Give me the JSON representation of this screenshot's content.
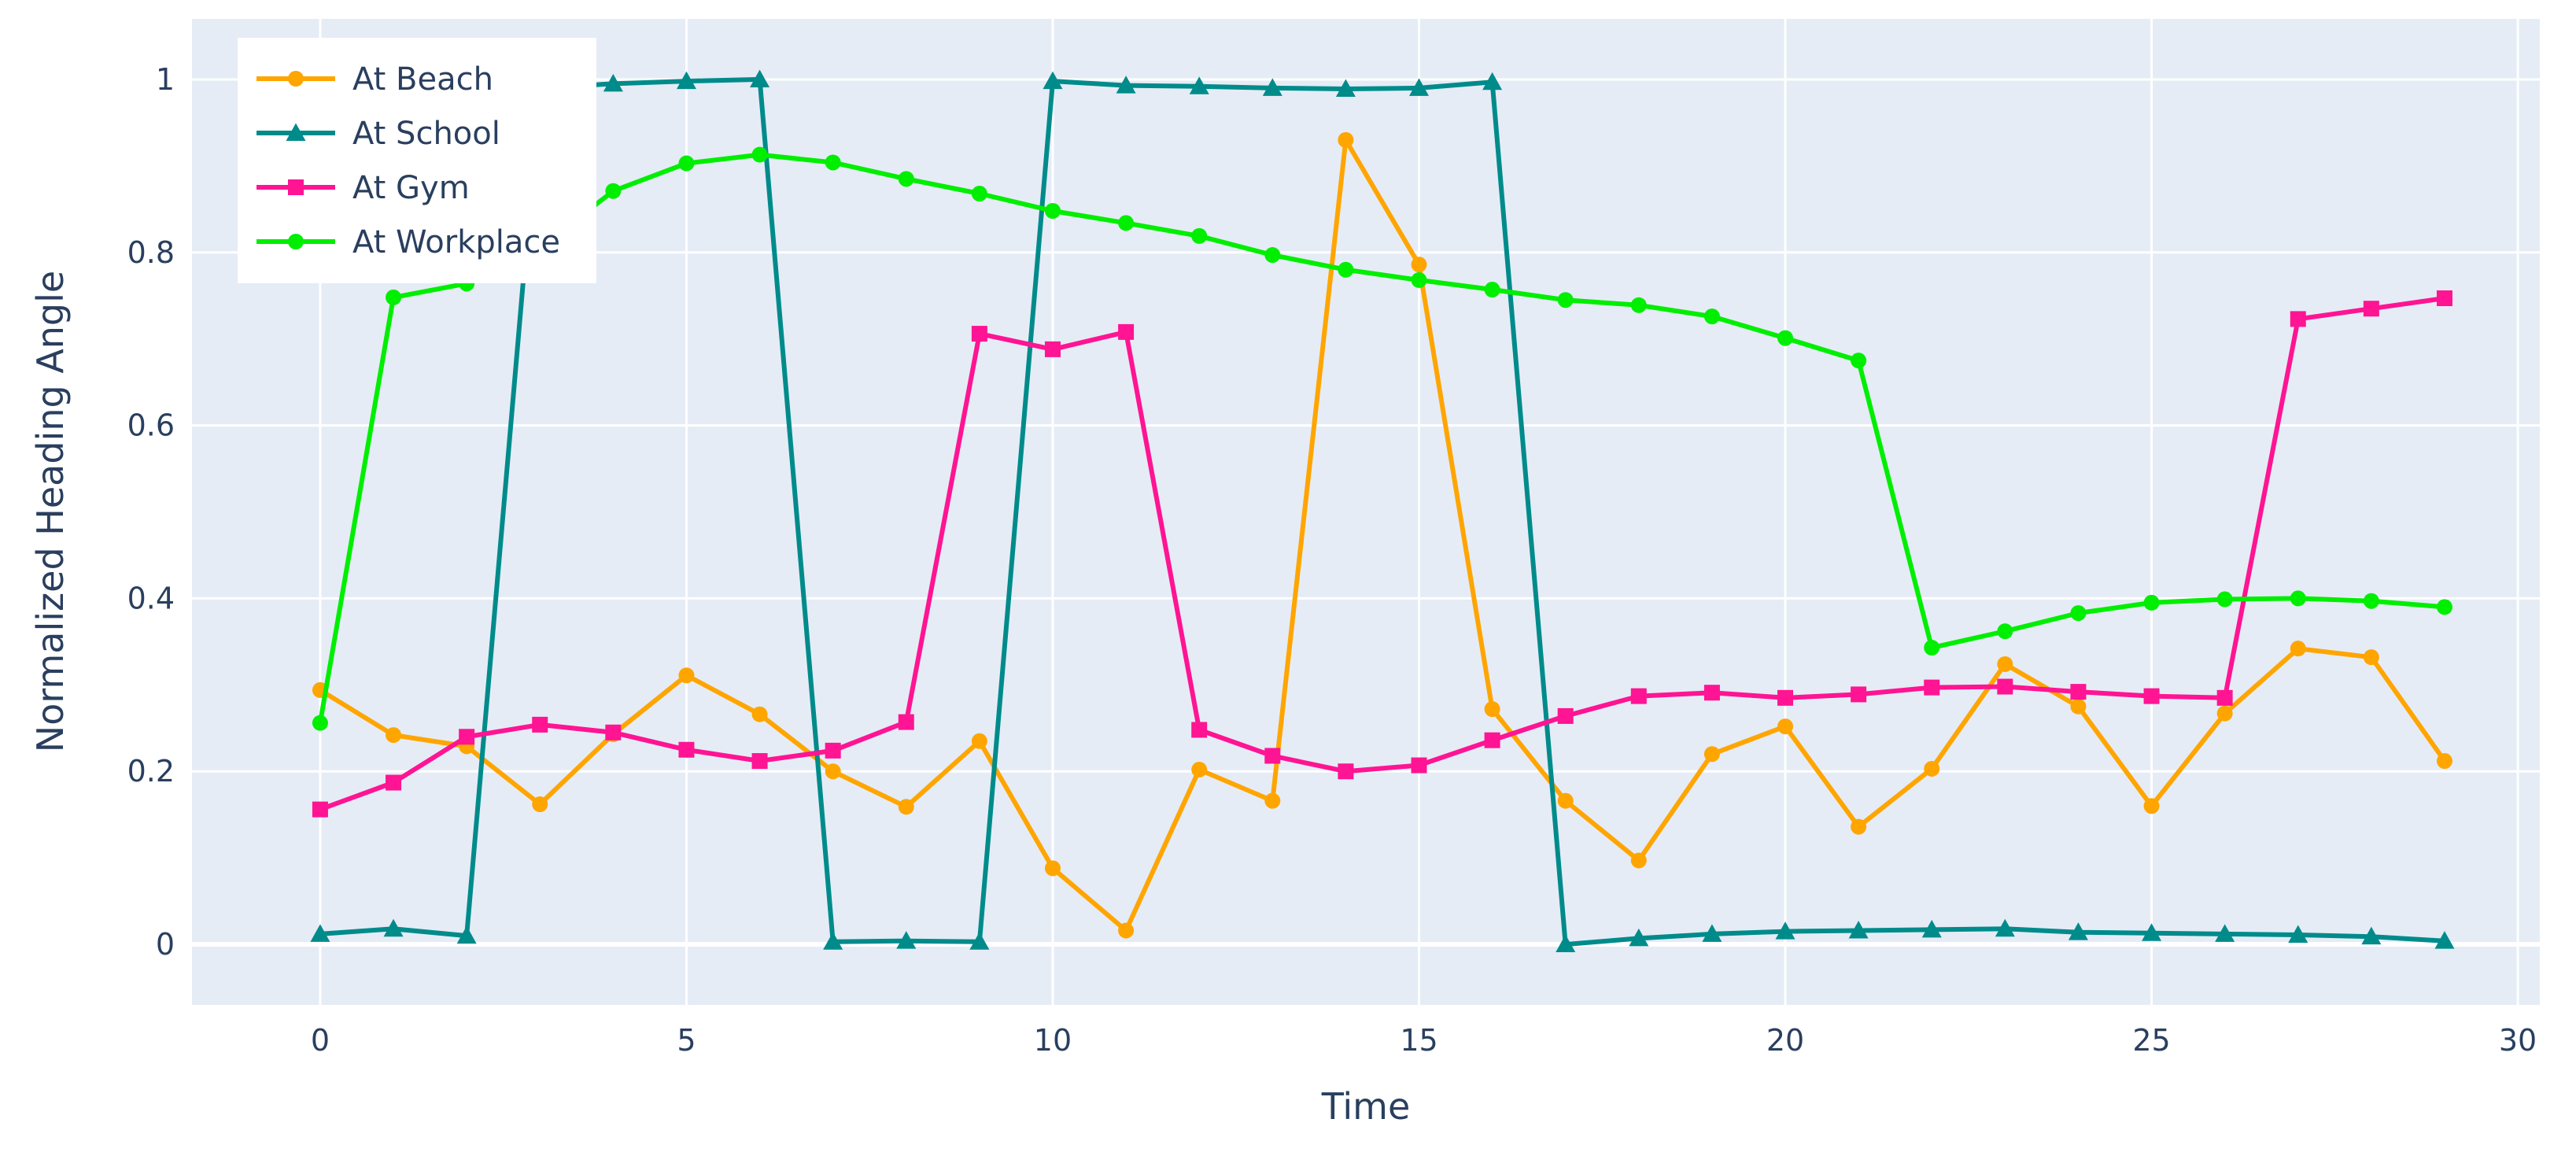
{
  "chart_data": {
    "type": "line",
    "xlabel": "Time",
    "ylabel": "Normalized Heading Angle",
    "xlim": [
      -1.75,
      30.3
    ],
    "ylim": [
      -0.07,
      1.07
    ],
    "xticks": [
      0,
      5,
      10,
      15,
      20,
      25,
      30
    ],
    "xtick_labels": [
      "0",
      "5",
      "10",
      "15",
      "20",
      "25",
      "30"
    ],
    "yticks": [
      0,
      0.2,
      0.4,
      0.6,
      0.8,
      1
    ],
    "ytick_labels": [
      "0",
      "0.2",
      "0.4",
      "0.6",
      "0.8",
      "1"
    ],
    "grid": true,
    "legend_position": "top-left",
    "plot_background": "#e5ecf6",
    "x": [
      0,
      1,
      2,
      3,
      4,
      5,
      6,
      7,
      8,
      9,
      10,
      11,
      12,
      13,
      14,
      15,
      16,
      17,
      18,
      19,
      20,
      21,
      22,
      23,
      24,
      25,
      26,
      27,
      28,
      29
    ],
    "series": [
      {
        "name": "At Beach",
        "color": "#ffa500",
        "marker": "circle",
        "values": [
          0.294,
          0.242,
          0.229,
          0.162,
          0.243,
          0.311,
          0.266,
          0.2,
          0.159,
          0.235,
          0.088,
          0.016,
          0.202,
          0.166,
          0.93,
          0.786,
          0.272,
          0.166,
          0.097,
          0.22,
          0.252,
          0.136,
          0.203,
          0.324,
          0.275,
          0.16,
          0.267,
          0.342,
          0.332,
          0.212
        ]
      },
      {
        "name": "At School",
        "color": "#008b8b",
        "marker": "triangle-up",
        "values": [
          0.012,
          0.018,
          0.01,
          0.99,
          0.995,
          0.998,
          1.0,
          0.003,
          0.004,
          0.003,
          0.998,
          0.993,
          0.992,
          0.99,
          0.989,
          0.99,
          0.997,
          0.0,
          0.007,
          0.012,
          0.015,
          0.016,
          0.017,
          0.018,
          0.014,
          0.013,
          0.012,
          0.011,
          0.009,
          0.004
        ]
      },
      {
        "name": "At Gym",
        "color": "#ff1493",
        "marker": "square",
        "values": [
          0.156,
          0.187,
          0.24,
          0.254,
          0.245,
          0.225,
          0.212,
          0.224,
          0.257,
          0.706,
          0.688,
          0.708,
          0.248,
          0.218,
          0.2,
          0.207,
          0.236,
          0.264,
          0.287,
          0.291,
          0.285,
          0.289,
          0.297,
          0.298,
          0.292,
          0.287,
          0.285,
          0.723,
          0.735,
          0.747
        ]
      },
      {
        "name": "At Workplace",
        "color": "#00ee00",
        "marker": "circle",
        "values": [
          0.256,
          0.748,
          0.764,
          0.805,
          0.871,
          0.903,
          0.913,
          0.904,
          0.885,
          0.868,
          0.848,
          0.834,
          0.819,
          0.797,
          0.78,
          0.768,
          0.757,
          0.745,
          0.739,
          0.726,
          0.701,
          0.675,
          0.343,
          0.362,
          0.383,
          0.395,
          0.399,
          0.4,
          0.397,
          0.39
        ]
      }
    ]
  }
}
